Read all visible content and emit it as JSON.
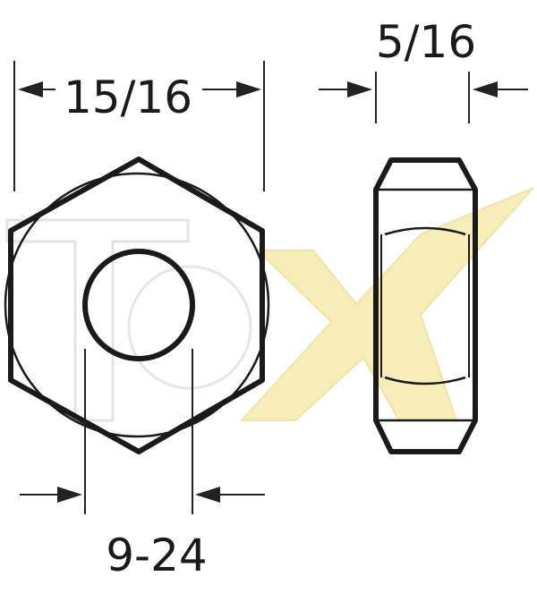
{
  "dimensions": {
    "across_flats": "15/16",
    "thickness": "5/16",
    "thread": "9-24"
  },
  "watermark": {
    "text": "TeX",
    "accent_color": "#f3e7a2"
  },
  "colors": {
    "outline": "#1a1a1a",
    "dimension_line": "#222222",
    "background": "#ffffff"
  }
}
